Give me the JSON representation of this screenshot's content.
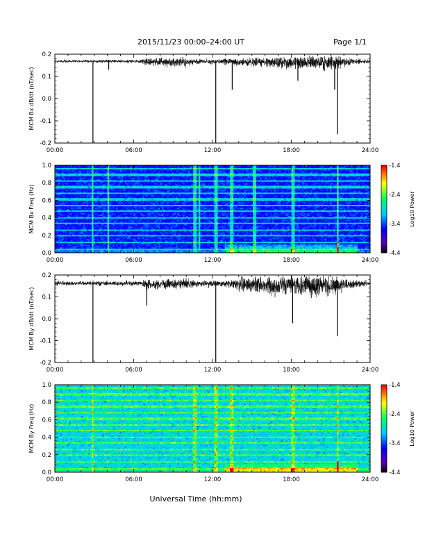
{
  "header": {
    "title": "2015/11/23  00:00–24:00 UT",
    "page": "Page 1/1"
  },
  "footer": {
    "xlabel": "Universal Time (hh:mm)"
  },
  "colors": {
    "trace": "#000000",
    "colorbar_scale": [
      "#000000",
      "#5a00a8",
      "#0000ff",
      "#00c8ff",
      "#00ff66",
      "#ffff00",
      "#ff0000"
    ]
  },
  "chart_data": [
    {
      "type": "line",
      "ylabel": "MCM Bx dB/dt (nT/sec)",
      "xlim": [
        0,
        24
      ],
      "ylim": [
        -0.2,
        0.2
      ],
      "x_ticks": [
        "00:00",
        "06:00",
        "12:00",
        "18:00",
        "24:00"
      ],
      "y_ticks": [
        "0.2",
        "0.1",
        "0.0",
        "-0.1",
        "-0.2"
      ],
      "baseline": 0.17,
      "noise_profile": [
        {
          "t": 0,
          "a": 0.012
        },
        {
          "t": 6.5,
          "a": 0.015
        },
        {
          "t": 7,
          "a": 0.035
        },
        {
          "t": 10,
          "a": 0.04
        },
        {
          "t": 11,
          "a": 0.02
        },
        {
          "t": 13.5,
          "a": 0.03
        },
        {
          "t": 16,
          "a": 0.045
        },
        {
          "t": 18,
          "a": 0.06
        },
        {
          "t": 21,
          "a": 0.07
        },
        {
          "t": 22.5,
          "a": 0.03
        },
        {
          "t": 24,
          "a": 0.015
        }
      ],
      "spikes": [
        {
          "t": 2.9,
          "y": -0.2
        },
        {
          "t": 4.1,
          "y": 0.13
        },
        {
          "t": 12.25,
          "y": -0.2
        },
        {
          "t": 13.5,
          "y": 0.04
        },
        {
          "t": 18.5,
          "y": 0.08
        },
        {
          "t": 21.3,
          "y": 0.04
        },
        {
          "t": 21.5,
          "y": -0.16
        }
      ]
    },
    {
      "type": "heatmap",
      "ylabel": "MCM Bx Freq (Hz)",
      "xlim": [
        0,
        24
      ],
      "ylim": [
        0,
        1.0
      ],
      "x_ticks": [
        "00:00",
        "06:00",
        "12:00",
        "18:00",
        "24:00"
      ],
      "y_ticks": [
        "1.0",
        "0.8",
        "0.6",
        "0.4",
        "0.2",
        "0.0"
      ],
      "colorbar": {
        "label": "Log10 Power",
        "range": [
          -4.4,
          -1.4
        ],
        "ticks": [
          "-1.4",
          "-2.4",
          "-3.4",
          "-4.4"
        ]
      },
      "base_level": -3.5,
      "harmonic_lines_hz": [
        0.04,
        0.12,
        0.19,
        0.26,
        0.33,
        0.4,
        0.47,
        0.54,
        0.61,
        0.68,
        0.75,
        0.82,
        0.89,
        0.96
      ],
      "vertical_streaks_hours": [
        2.9,
        4.1,
        10.7,
        11.0,
        12.25,
        13.5,
        15.2,
        18.1,
        21.5
      ],
      "low_freq_enhancement": {
        "from_hour": 13,
        "to_hour": 23,
        "below_hz": 0.1
      }
    },
    {
      "type": "line",
      "ylabel": "MCM By dB/dt (nT/sec)",
      "xlim": [
        0,
        24
      ],
      "ylim": [
        -0.2,
        0.2
      ],
      "x_ticks": [
        "00:00",
        "06:00",
        "12:00",
        "18:00",
        "24:00"
      ],
      "y_ticks": [
        "0.2",
        "0.1",
        "0.0",
        "-0.1",
        "-0.2"
      ],
      "baseline": 0.165,
      "noise_profile": [
        {
          "t": 0,
          "a": 0.02
        },
        {
          "t": 6.5,
          "a": 0.025
        },
        {
          "t": 7,
          "a": 0.05
        },
        {
          "t": 10,
          "a": 0.045
        },
        {
          "t": 11,
          "a": 0.025
        },
        {
          "t": 13.5,
          "a": 0.04
        },
        {
          "t": 14.5,
          "a": 0.08
        },
        {
          "t": 18,
          "a": 0.09
        },
        {
          "t": 21,
          "a": 0.1
        },
        {
          "t": 22.5,
          "a": 0.04
        },
        {
          "t": 24,
          "a": 0.02
        }
      ],
      "spikes": [
        {
          "t": 2.9,
          "y": -0.2
        },
        {
          "t": 7.0,
          "y": 0.06
        },
        {
          "t": 12.25,
          "y": -0.2
        },
        {
          "t": 18.1,
          "y": -0.02
        },
        {
          "t": 21.5,
          "y": -0.08
        }
      ]
    },
    {
      "type": "heatmap",
      "ylabel": "MCM By Freq (Hz)",
      "xlim": [
        0,
        24
      ],
      "ylim": [
        0,
        1.0
      ],
      "x_ticks": [
        "00:00",
        "06:00",
        "12:00",
        "18:00",
        "24:00"
      ],
      "y_ticks": [
        "1.0",
        "0.8",
        "0.6",
        "0.4",
        "0.2",
        "0.0"
      ],
      "colorbar": {
        "label": "Log10 Power",
        "range": [
          -4.4,
          -1.4
        ],
        "ticks": [
          "-1.4",
          "-2.4",
          "-3.4",
          "-4.4"
        ]
      },
      "base_level": -2.95,
      "harmonic_lines_hz": [
        0.04,
        0.12,
        0.19,
        0.26,
        0.33,
        0.4,
        0.47,
        0.54,
        0.61,
        0.68,
        0.75,
        0.82,
        0.89,
        0.96
      ],
      "vertical_streaks_hours": [
        2.9,
        10.7,
        12.25,
        13.5,
        18.1,
        21.5
      ],
      "low_freq_enhancement": {
        "from_hour": 13,
        "to_hour": 23,
        "below_hz": 0.1
      }
    }
  ]
}
